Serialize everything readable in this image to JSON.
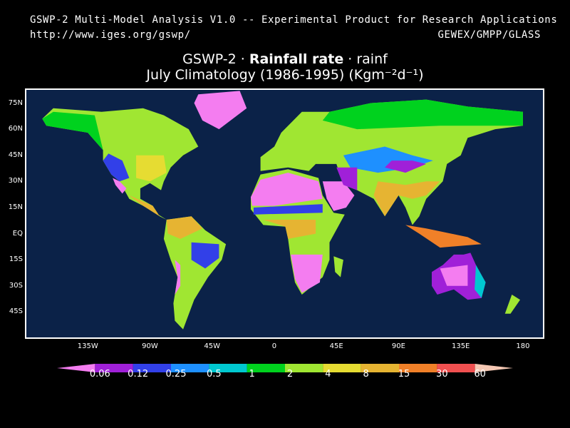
{
  "header": {
    "line1": "GSWP-2 Multi-Model Analysis V1.0 -- Experimental Product for Research Applications",
    "url": "http://www.iges.org/gswp/",
    "org": "GEWEX/GMPP/GLASS"
  },
  "title": {
    "prefix": "GSWP-2 · ",
    "variable": "Rainfall rate",
    "suffix": " · rainf",
    "line2": "July Climatology (1986-1995) (Kgm⁻²d⁻¹)"
  },
  "map": {
    "ocean_color": "#0b2248",
    "frame_color": "#ffffff",
    "lat_labels": [
      "75N",
      "60N",
      "45N",
      "30N",
      "15N",
      "EQ",
      "15S",
      "30S",
      "45S"
    ],
    "lat_values": [
      75,
      60,
      45,
      30,
      15,
      0,
      -15,
      -30,
      -45
    ],
    "lon_labels": [
      "135W",
      "90W",
      "45W",
      "0",
      "45E",
      "90E",
      "135E",
      "180"
    ],
    "lon_values": [
      -135,
      -90,
      -45,
      0,
      45,
      90,
      135,
      180
    ]
  },
  "colorbar": {
    "labels": [
      "0.06",
      "0.12",
      "0.25",
      "0.5",
      "1",
      "2",
      "4",
      "8",
      "15",
      "30",
      "60"
    ],
    "colors": [
      "#f47df0",
      "#a020d8",
      "#3240e8",
      "#1e90ff",
      "#00c8d0",
      "#00d21e",
      "#a0e632",
      "#e6dc32",
      "#e6b432",
      "#f08028",
      "#f05050",
      "#f5c8b4"
    ]
  }
}
